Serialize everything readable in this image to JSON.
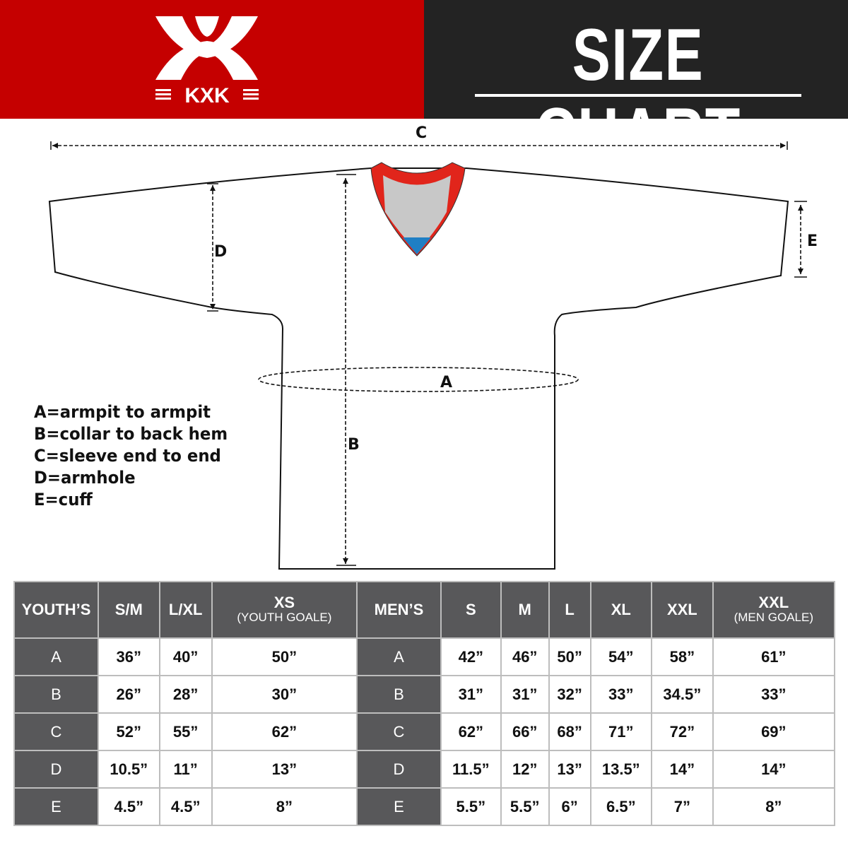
{
  "brand": {
    "logo_text": "KXK",
    "accent": "#c50000",
    "dark": "#232323"
  },
  "header": {
    "title": "SIZE CHART"
  },
  "diagram": {
    "labels": {
      "a": "A",
      "b": "B",
      "c": "C",
      "d": "D",
      "e": "E"
    },
    "legend": [
      "A=armpit to armpit",
      "B=collar to back hem",
      "C=sleeve end to end",
      "D=armhole",
      "E=cuff"
    ]
  },
  "table": {
    "headers": [
      {
        "main": "YOUTH’S"
      },
      {
        "main": "S/M"
      },
      {
        "main": "L/XL"
      },
      {
        "main": "XS",
        "sub": "(YOUTH GOALE)"
      },
      {
        "main": "MEN’S"
      },
      {
        "main": "S"
      },
      {
        "main": "M"
      },
      {
        "main": "L"
      },
      {
        "main": "XL"
      },
      {
        "main": "XXL"
      },
      {
        "main": "XXL",
        "sub": "(MEN GOALE)"
      }
    ],
    "rows": [
      [
        "A",
        "36”",
        "40”",
        "50”",
        "A",
        "42”",
        "46”",
        "50”",
        "54”",
        "58”",
        "61”"
      ],
      [
        "B",
        "26”",
        "28”",
        "30”",
        "B",
        "31”",
        "31”",
        "32”",
        "33”",
        "34.5”",
        "33”"
      ],
      [
        "C",
        "52”",
        "55”",
        "62”",
        "C",
        "62”",
        "66”",
        "68”",
        "71”",
        "72”",
        "69”"
      ],
      [
        "D",
        "10.5”",
        "11”",
        "13”",
        "D",
        "11.5”",
        "12”",
        "13”",
        "13.5”",
        "14”",
        "14”"
      ],
      [
        "E",
        "4.5”",
        "4.5”",
        "8”",
        "E",
        "5.5”",
        "5.5”",
        "6”",
        "6.5”",
        "7”",
        "8”"
      ]
    ]
  }
}
